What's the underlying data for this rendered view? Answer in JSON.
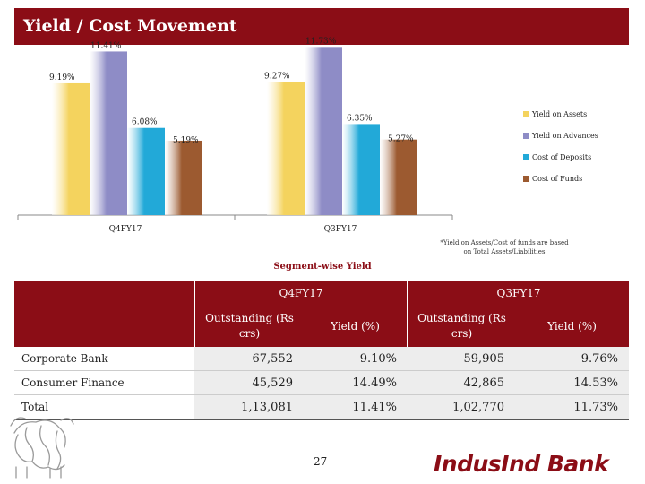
{
  "header": {
    "title": "Yield / Cost Movement"
  },
  "chart_data": {
    "type": "bar",
    "categories": [
      "Q4FY17",
      "Q3FY17"
    ],
    "series": [
      {
        "name": "Yield on Assets",
        "values": [
          9.19,
          9.27
        ],
        "labels": [
          "9.19%",
          "9.27%"
        ],
        "color": "#f4d35e"
      },
      {
        "name": "Yield on Advances",
        "values": [
          11.41,
          11.73
        ],
        "labels": [
          "11.41%",
          "11.73%"
        ],
        "color": "#8e8cc6"
      },
      {
        "name": "Cost of Deposits",
        "values": [
          6.08,
          6.35
        ],
        "labels": [
          "6.08%",
          "6.35%"
        ],
        "color": "#22a9d8"
      },
      {
        "name": "Cost of Funds",
        "values": [
          5.19,
          5.27
        ],
        "labels": [
          "5.19%",
          "5.27%"
        ],
        "color": "#9c5a30"
      }
    ],
    "ylim": [
      0,
      13
    ],
    "title": "",
    "xlabel": "",
    "ylabel": "",
    "legend": "right"
  },
  "note": "*Yield on Assets/Cost of funds are based on Total Assets/Liabilities",
  "segment": {
    "title": "Segment-wise Yield",
    "periods": [
      "Q4FY17",
      "Q3FY17"
    ],
    "col_outstanding": "Outstanding (Rs crs)",
    "col_yield": "Yield (%)",
    "rows": [
      {
        "label": "Corporate Bank",
        "q4_out": "67,552",
        "q4_yield": "9.10%",
        "q3_out": "59,905",
        "q3_yield": "9.76%"
      },
      {
        "label": "Consumer Finance",
        "q4_out": "45,529",
        "q4_yield": "14.49%",
        "q3_out": "42,865",
        "q3_yield": "14.53%"
      },
      {
        "label": "Total",
        "q4_out": "1,13,081",
        "q4_yield": "11.41%",
        "q3_out": "1,02,770",
        "q3_yield": "11.73%"
      }
    ]
  },
  "footer": {
    "page": "27",
    "logo": "IndusInd Bank"
  }
}
